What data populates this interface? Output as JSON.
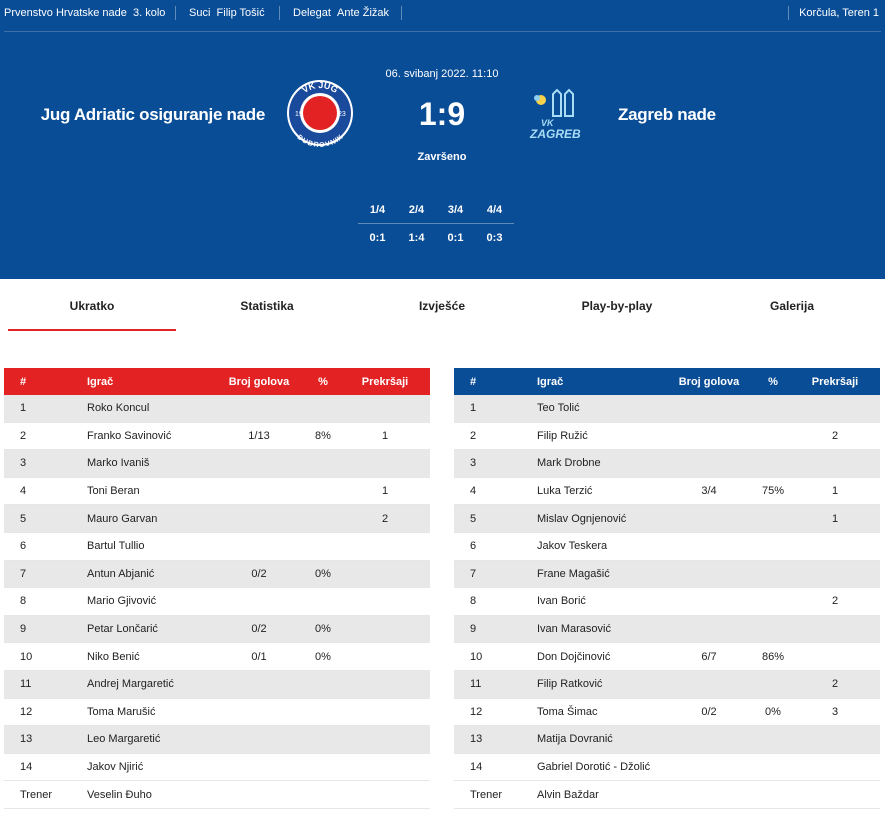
{
  "topbar": {
    "competition": "Prvenstvo Hrvatske nade",
    "round": "3. kolo",
    "referees_label": "Suci",
    "referees": "Filip Tošić",
    "delegate_label": "Delegat",
    "delegate": "Ante Žižak",
    "venue": "Korčula, Teren 1"
  },
  "match": {
    "home_team": "Jug Adriatic osiguranje nade",
    "away_team": "Zagreb nade",
    "date": "06. svibanj 2022. 11:10",
    "score": "1:9",
    "status": "Završeno",
    "home_logo_text_top": "VK JUG",
    "home_logo_text_bottom": "DUBROVNIK",
    "home_logo_left": "19",
    "home_logo_right": "23",
    "away_logo_text_top": "VK",
    "away_logo_text_bottom": "ZAGREB",
    "quarters": [
      {
        "label": "1/4",
        "score": "0:1"
      },
      {
        "label": "2/4",
        "score": "1:4"
      },
      {
        "label": "3/4",
        "score": "0:1"
      },
      {
        "label": "4/4",
        "score": "0:3"
      }
    ]
  },
  "tabs": [
    {
      "label": "Ukratko",
      "active": true
    },
    {
      "label": "Statistika",
      "active": false
    },
    {
      "label": "Izvješće",
      "active": false
    },
    {
      "label": "Play-by-play",
      "active": false
    },
    {
      "label": "Galerija",
      "active": false
    }
  ],
  "colors": {
    "brand_blue": "#0a4d97",
    "home_header": "#e32224",
    "away_header": "#0a4d97",
    "tab_underline": "#e32224"
  },
  "columns": {
    "num": "#",
    "player": "Igrač",
    "goals": "Broj golova",
    "pct": "%",
    "fouls": "Prekršaji"
  },
  "home_roster": {
    "players": [
      {
        "num": "1",
        "name": "Roko Koncul",
        "goals": "",
        "pct": "",
        "fouls": ""
      },
      {
        "num": "2",
        "name": "Franko Savinović",
        "goals": "1/13",
        "pct": "8%",
        "fouls": "1"
      },
      {
        "num": "3",
        "name": "Marko Ivaniš",
        "goals": "",
        "pct": "",
        "fouls": ""
      },
      {
        "num": "4",
        "name": "Toni Beran",
        "goals": "",
        "pct": "",
        "fouls": "1"
      },
      {
        "num": "5",
        "name": "Mauro Garvan",
        "goals": "",
        "pct": "",
        "fouls": "2"
      },
      {
        "num": "6",
        "name": "Bartul Tullio",
        "goals": "",
        "pct": "",
        "fouls": ""
      },
      {
        "num": "7",
        "name": "Antun Abjanić",
        "goals": "0/2",
        "pct": "0%",
        "fouls": ""
      },
      {
        "num": "8",
        "name": "Mario Gjivović",
        "goals": "",
        "pct": "",
        "fouls": ""
      },
      {
        "num": "9",
        "name": "Petar Lončarić",
        "goals": "0/2",
        "pct": "0%",
        "fouls": ""
      },
      {
        "num": "10",
        "name": "Niko Benić",
        "goals": "0/1",
        "pct": "0%",
        "fouls": ""
      },
      {
        "num": "11",
        "name": "Andrej Margaretić",
        "goals": "",
        "pct": "",
        "fouls": ""
      },
      {
        "num": "12",
        "name": "Toma Marušić",
        "goals": "",
        "pct": "",
        "fouls": ""
      },
      {
        "num": "13",
        "name": "Leo Margaretić",
        "goals": "",
        "pct": "",
        "fouls": ""
      },
      {
        "num": "14",
        "name": "Jakov Njirić",
        "goals": "",
        "pct": "",
        "fouls": ""
      }
    ],
    "coach_label": "Trener",
    "coach": "Veselin Đuho"
  },
  "away_roster": {
    "players": [
      {
        "num": "1",
        "name": "Teo Tolić",
        "goals": "",
        "pct": "",
        "fouls": ""
      },
      {
        "num": "2",
        "name": "Filip Ružić",
        "goals": "",
        "pct": "",
        "fouls": "2"
      },
      {
        "num": "3",
        "name": "Mark Drobne",
        "goals": "",
        "pct": "",
        "fouls": ""
      },
      {
        "num": "4",
        "name": "Luka Terzić",
        "goals": "3/4",
        "pct": "75%",
        "fouls": "1"
      },
      {
        "num": "5",
        "name": "Mislav Ognjenović",
        "goals": "",
        "pct": "",
        "fouls": "1"
      },
      {
        "num": "6",
        "name": "Jakov Teskera",
        "goals": "",
        "pct": "",
        "fouls": ""
      },
      {
        "num": "7",
        "name": "Frane Magašić",
        "goals": "",
        "pct": "",
        "fouls": ""
      },
      {
        "num": "8",
        "name": "Ivan Borić",
        "goals": "",
        "pct": "",
        "fouls": "2"
      },
      {
        "num": "9",
        "name": "Ivan Marasović",
        "goals": "",
        "pct": "",
        "fouls": ""
      },
      {
        "num": "10",
        "name": "Don Dojčinović",
        "goals": "6/7",
        "pct": "86%",
        "fouls": ""
      },
      {
        "num": "11",
        "name": "Filip Ratković",
        "goals": "",
        "pct": "",
        "fouls": "2"
      },
      {
        "num": "12",
        "name": "Toma Šimac",
        "goals": "0/2",
        "pct": "0%",
        "fouls": "3"
      },
      {
        "num": "13",
        "name": "Matija Dovranić",
        "goals": "",
        "pct": "",
        "fouls": ""
      },
      {
        "num": "14",
        "name": "Gabriel Dorotić - Džolić",
        "goals": "",
        "pct": "",
        "fouls": ""
      }
    ],
    "coach_label": "Trener",
    "coach": "Alvin Baždar"
  }
}
